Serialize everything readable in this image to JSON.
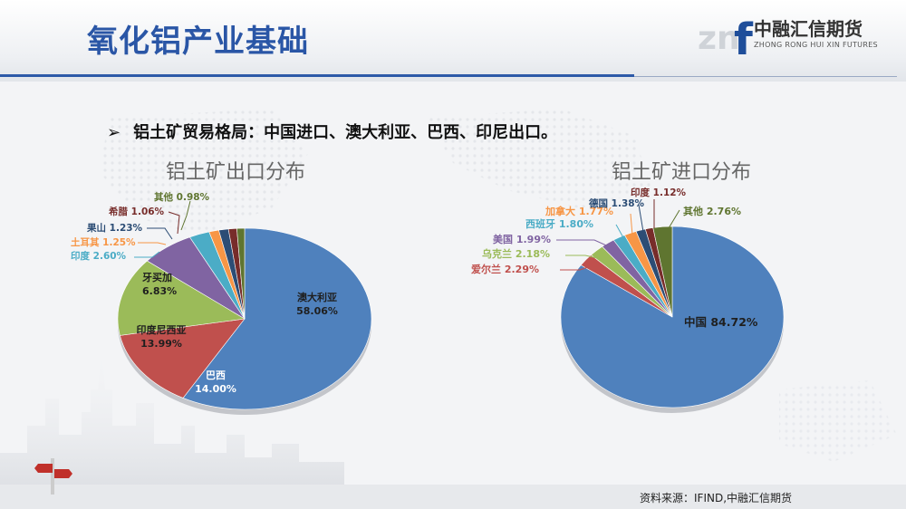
{
  "slide": {
    "title": "氧化铝产业基础",
    "bullet": "铝土矿贸易格局：中国进口、澳大利亚、巴西、印尼出口。",
    "source": "资料来源：IFIND,中融汇信期货"
  },
  "logo": {
    "mark": "zn",
    "mark_f": "f",
    "name_cn": "中融汇信期货",
    "name_en": "ZHONG RONG HUI XIN FUTURES"
  },
  "colors": {
    "title": "#2a56a6",
    "rule": "#2d5aa8",
    "accent_orange": "#f08a24"
  },
  "chart_data": [
    {
      "type": "pie",
      "title": "铝土矿出口分布",
      "slices": [
        {
          "name": "澳大利亚",
          "value": 58.06,
          "label": "澳大利亚\n58.06%",
          "color": "#4f81bd",
          "label_color": "#1f1f1f"
        },
        {
          "name": "巴西",
          "value": 14.0,
          "label": "巴西\n14.00%",
          "color": "#c0504d",
          "label_color": "#ffffff"
        },
        {
          "name": "印度尼西亚",
          "value": 13.99,
          "label": "印度尼西亚\n13.99%",
          "color": "#9bbb59",
          "label_color": "#1f1f1f"
        },
        {
          "name": "牙买加",
          "value": 6.83,
          "label": "牙买加\n6.83%",
          "color": "#8064a2",
          "label_color": "#1f1f1f"
        },
        {
          "name": "印度",
          "value": 2.6,
          "label": "印度 2.60%",
          "color": "#4bacc6",
          "label_color": "#4bacc6"
        },
        {
          "name": "土耳其",
          "value": 1.25,
          "label": "土耳其 1.25%",
          "color": "#f79646",
          "label_color": "#f79646"
        },
        {
          "name": "果山",
          "value": 1.23,
          "label": "果山 1.23%",
          "color": "#2c4d75",
          "label_color": "#2c4d75"
        },
        {
          "name": "希腊",
          "value": 1.06,
          "label": "希腊 1.06%",
          "color": "#772c2a",
          "label_color": "#772c2a"
        },
        {
          "name": "其他",
          "value": 0.98,
          "label": "其他 0.98%",
          "color": "#5f7530",
          "label_color": "#5f7530"
        }
      ]
    },
    {
      "type": "pie",
      "title": "铝土矿进口分布",
      "slices": [
        {
          "name": "中国",
          "value": 84.72,
          "label": "中国 84.72%",
          "color": "#4f81bd",
          "label_color": "#1f1f1f"
        },
        {
          "name": "爱尔兰",
          "value": 2.29,
          "label": "爱尔兰 2.29%",
          "color": "#c0504d",
          "label_color": "#c0504d"
        },
        {
          "name": "乌克兰",
          "value": 2.18,
          "label": "乌克兰 2.18%",
          "color": "#9bbb59",
          "label_color": "#9bbb59"
        },
        {
          "name": "美国",
          "value": 1.99,
          "label": "美国 1.99%",
          "color": "#8064a2",
          "label_color": "#8064a2"
        },
        {
          "name": "西班牙",
          "value": 1.8,
          "label": "西班牙 1.80%",
          "color": "#4bacc6",
          "label_color": "#4bacc6"
        },
        {
          "name": "加拿大",
          "value": 1.77,
          "label": "加拿大 1.77%",
          "color": "#f79646",
          "label_color": "#f79646"
        },
        {
          "name": "德国",
          "value": 1.38,
          "label": "德国 1.38%",
          "color": "#2c4d75",
          "label_color": "#2c4d75"
        },
        {
          "name": "印度",
          "value": 1.12,
          "label": "印度 1.12%",
          "color": "#772c2a",
          "label_color": "#772c2a"
        },
        {
          "name": "其他",
          "value": 2.76,
          "label": "其他 2.76%",
          "color": "#5f7530",
          "label_color": "#5f7530"
        }
      ]
    }
  ]
}
